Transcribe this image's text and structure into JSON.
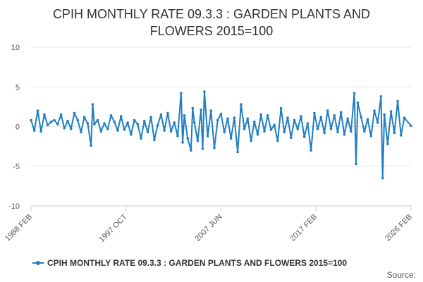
{
  "chart_data": {
    "type": "line",
    "title": [
      "CPIH MONTHLY RATE 09.3.3 : GARDEN PLANTS AND",
      "FLOWERS 2015=100"
    ],
    "x_tick_labels": [
      "1988 FEB",
      "1997 OCT",
      "2007 JUN",
      "2017 FEB",
      "2026 FEB"
    ],
    "y_tick_labels": [
      "10",
      "5",
      "0",
      "-5",
      "-10"
    ],
    "ylim": [
      -10,
      10
    ],
    "x_start": "1988-02",
    "x_end": "2026-02",
    "series": [
      {
        "name": "CPIH MONTHLY RATE 09.3.3 : GARDEN PLANTS AND FLOWERS 2015=100",
        "color": "#1f7ec1",
        "points": [
          [
            "1988-02",
            0.8
          ],
          [
            "1988-06",
            -0.5
          ],
          [
            "1988-10",
            2.0
          ],
          [
            "1989-02",
            -0.6
          ],
          [
            "1989-06",
            1.5
          ],
          [
            "1989-10",
            0.2
          ],
          [
            "1990-02",
            0.6
          ],
          [
            "1990-06",
            0.8
          ],
          [
            "1990-10",
            0.3
          ],
          [
            "1991-02",
            1.5
          ],
          [
            "1991-06",
            -0.2
          ],
          [
            "1991-10",
            0.7
          ],
          [
            "1992-02",
            -0.3
          ],
          [
            "1992-06",
            1.7
          ],
          [
            "1992-10",
            0.8
          ],
          [
            "1993-02",
            -0.7
          ],
          [
            "1993-06",
            1.2
          ],
          [
            "1993-10",
            0.4
          ],
          [
            "1994-02",
            -2.4
          ],
          [
            "1994-04",
            2.8
          ],
          [
            "1994-06",
            0.3
          ],
          [
            "1994-10",
            0.8
          ],
          [
            "1995-02",
            -0.6
          ],
          [
            "1995-06",
            0.4
          ],
          [
            "1995-10",
            -0.3
          ],
          [
            "1996-02",
            1.4
          ],
          [
            "1996-06",
            0.6
          ],
          [
            "1996-10",
            -0.5
          ],
          [
            "1997-02",
            1.3
          ],
          [
            "1997-06",
            -0.4
          ],
          [
            "1997-10",
            0.5
          ],
          [
            "1998-02",
            -1.0
          ],
          [
            "1998-06",
            0.8
          ],
          [
            "1998-10",
            0.3
          ],
          [
            "1999-02",
            -1.5
          ],
          [
            "1999-06",
            0.7
          ],
          [
            "1999-10",
            -0.7
          ],
          [
            "2000-02",
            1.2
          ],
          [
            "2000-06",
            -1.7
          ],
          [
            "2000-10",
            0.2
          ],
          [
            "2001-02",
            1.5
          ],
          [
            "2001-06",
            -0.5
          ],
          [
            "2001-10",
            1.7
          ],
          [
            "2002-02",
            -0.6
          ],
          [
            "2002-06",
            0.5
          ],
          [
            "2002-10",
            -1.2
          ],
          [
            "2003-02",
            4.2
          ],
          [
            "2003-04",
            -2.0
          ],
          [
            "2003-06",
            1.4
          ],
          [
            "2003-10",
            -1.5
          ],
          [
            "2004-02",
            -3.0
          ],
          [
            "2004-04",
            2.3
          ],
          [
            "2004-06",
            0.5
          ],
          [
            "2004-10",
            -1.8
          ],
          [
            "2005-02",
            2.1
          ],
          [
            "2005-04",
            -2.8
          ],
          [
            "2005-06",
            4.4
          ],
          [
            "2005-10",
            -1.2
          ],
          [
            "2006-02",
            2.0
          ],
          [
            "2006-06",
            -2.7
          ],
          [
            "2006-10",
            0.8
          ],
          [
            "2007-02",
            1.6
          ],
          [
            "2007-06",
            -0.7
          ],
          [
            "2007-10",
            1.0
          ],
          [
            "2008-02",
            -1.5
          ],
          [
            "2008-06",
            1.1
          ],
          [
            "2008-10",
            -3.2
          ],
          [
            "2009-02",
            2.8
          ],
          [
            "2009-06",
            -0.3
          ],
          [
            "2009-10",
            1.0
          ],
          [
            "2010-02",
            -1.8
          ],
          [
            "2010-06",
            0.6
          ],
          [
            "2010-10",
            -1.0
          ],
          [
            "2011-02",
            1.5
          ],
          [
            "2011-06",
            -0.6
          ],
          [
            "2011-10",
            1.4
          ],
          [
            "2012-02",
            -0.4
          ],
          [
            "2012-06",
            0.2
          ],
          [
            "2012-10",
            -1.8
          ],
          [
            "2013-02",
            2.3
          ],
          [
            "2013-06",
            -0.7
          ],
          [
            "2013-10",
            1.1
          ],
          [
            "2014-02",
            -1.4
          ],
          [
            "2014-06",
            0.8
          ],
          [
            "2014-10",
            -0.3
          ],
          [
            "2015-02",
            1.3
          ],
          [
            "2015-06",
            -1.3
          ],
          [
            "2015-10",
            0.4
          ],
          [
            "2016-02",
            -3.0
          ],
          [
            "2016-06",
            1.7
          ],
          [
            "2016-10",
            -0.3
          ],
          [
            "2017-02",
            1.2
          ],
          [
            "2017-06",
            -0.8
          ],
          [
            "2017-10",
            2.0
          ],
          [
            "2018-02",
            -0.3
          ],
          [
            "2018-06",
            1.4
          ],
          [
            "2018-10",
            -0.7
          ],
          [
            "2019-02",
            1.8
          ],
          [
            "2019-06",
            -1.0
          ],
          [
            "2019-10",
            1.0
          ],
          [
            "2020-02",
            -0.6
          ],
          [
            "2020-06",
            4.2
          ],
          [
            "2020-08",
            -4.7
          ],
          [
            "2020-10",
            3.0
          ],
          [
            "2021-02",
            1.2
          ],
          [
            "2021-06",
            -0.6
          ],
          [
            "2021-10",
            0.9
          ],
          [
            "2022-02",
            -1.2
          ],
          [
            "2022-06",
            2.0
          ],
          [
            "2022-10",
            0.5
          ],
          [
            "2023-02",
            3.8
          ],
          [
            "2023-04",
            -6.5
          ],
          [
            "2023-06",
            1.5
          ],
          [
            "2023-10",
            -2.2
          ],
          [
            "2024-02",
            1.9
          ],
          [
            "2024-06",
            -0.8
          ],
          [
            "2024-10",
            3.2
          ],
          [
            "2025-02",
            -1.1
          ],
          [
            "2025-06",
            1.1
          ],
          [
            "2026-02",
            0.1
          ]
        ]
      }
    ]
  },
  "legend": {
    "label": "CPIH MONTHLY RATE 09.3.3 : GARDEN PLANTS AND FLOWERS 2015=100"
  },
  "source": {
    "label": "Source:"
  }
}
